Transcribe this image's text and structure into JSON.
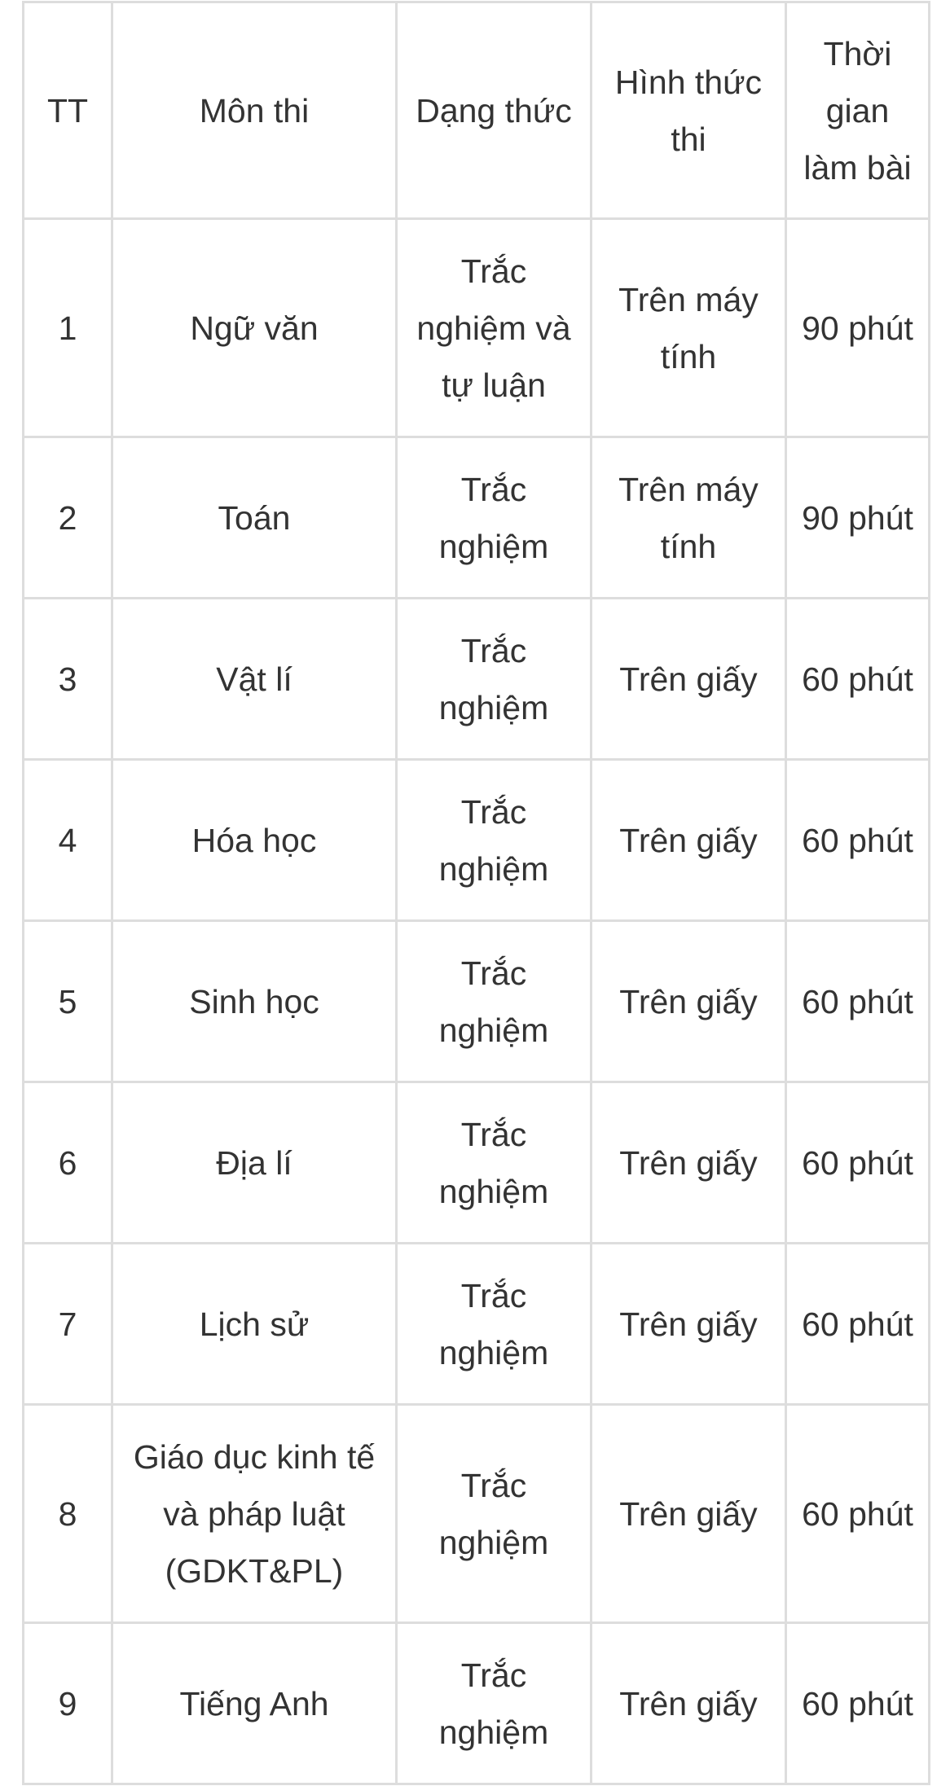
{
  "table": {
    "headers": [
      [
        "TT"
      ],
      [
        "Môn thi"
      ],
      [
        "Dạng thức"
      ],
      [
        "Hình thức",
        "thi"
      ],
      [
        "Thời",
        "gian",
        "làm bài"
      ]
    ],
    "rows": [
      [
        [
          "1"
        ],
        [
          "Ngữ văn"
        ],
        [
          "Trắc",
          "nghiệm và",
          "tự luận"
        ],
        [
          "Trên máy",
          "tính"
        ],
        [
          "90 phút"
        ]
      ],
      [
        [
          "2"
        ],
        [
          "Toán"
        ],
        [
          "Trắc",
          "nghiệm"
        ],
        [
          "Trên máy",
          "tính"
        ],
        [
          "90 phút"
        ]
      ],
      [
        [
          "3"
        ],
        [
          "Vật lí"
        ],
        [
          "Trắc",
          "nghiệm"
        ],
        [
          "Trên giấy"
        ],
        [
          "60 phút"
        ]
      ],
      [
        [
          "4"
        ],
        [
          "Hóa học"
        ],
        [
          "Trắc",
          "nghiệm"
        ],
        [
          "Trên giấy"
        ],
        [
          "60 phút"
        ]
      ],
      [
        [
          "5"
        ],
        [
          "Sinh học"
        ],
        [
          "Trắc",
          "nghiệm"
        ],
        [
          "Trên giấy"
        ],
        [
          "60 phút"
        ]
      ],
      [
        [
          "6"
        ],
        [
          "Địa lí"
        ],
        [
          "Trắc",
          "nghiệm"
        ],
        [
          "Trên giấy"
        ],
        [
          "60 phút"
        ]
      ],
      [
        [
          "7"
        ],
        [
          "Lịch sử"
        ],
        [
          "Trắc",
          "nghiệm"
        ],
        [
          "Trên giấy"
        ],
        [
          "60 phút"
        ]
      ],
      [
        [
          "8"
        ],
        [
          "Giáo dục kinh tế",
          "và pháp luật",
          "(GDKT&PL)"
        ],
        [
          "Trắc",
          "nghiệm"
        ],
        [
          "Trên giấy"
        ],
        [
          "60 phút"
        ]
      ],
      [
        [
          "9"
        ],
        [
          "Tiếng Anh"
        ],
        [
          "Trắc",
          "nghiệm"
        ],
        [
          "Trên giấy"
        ],
        [
          "60 phút"
        ]
      ]
    ]
  },
  "colors": {
    "border": "#dddddd",
    "text": "#333333",
    "background": "#ffffff"
  }
}
